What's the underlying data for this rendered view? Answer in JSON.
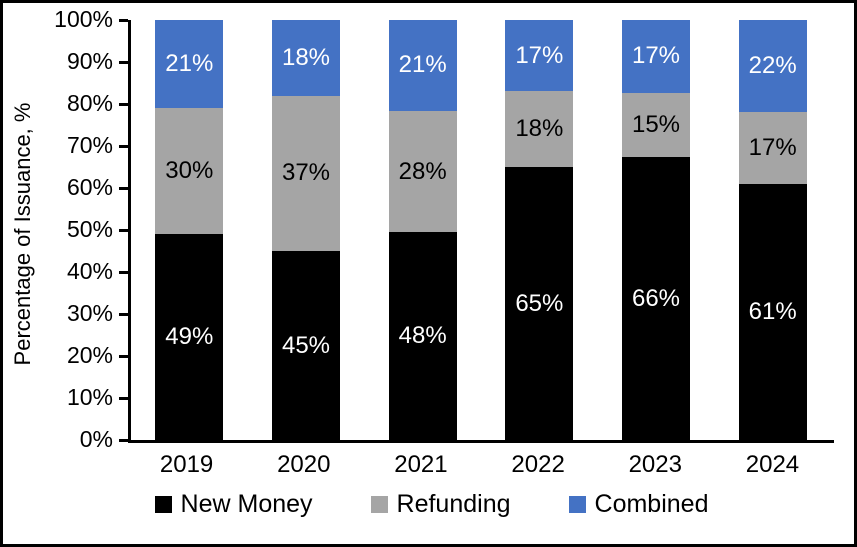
{
  "chart_data": {
    "type": "bar",
    "stacked": true,
    "title": "",
    "ylabel": "Percentage of Issuance, %",
    "xlabel": "",
    "ylim": [
      0,
      100
    ],
    "grid": false,
    "legend_position": "bottom",
    "categories": [
      "2019",
      "2020",
      "2021",
      "2022",
      "2023",
      "2024"
    ],
    "series": [
      {
        "name": "New Money",
        "color": "#000000",
        "label_color": "#ffffff",
        "values": [
          49,
          45,
          48,
          65,
          66,
          61
        ],
        "labels": [
          "49%",
          "45%",
          "48%",
          "65%",
          "66%",
          "61%"
        ]
      },
      {
        "name": "Refunding",
        "color": "#A5A5A5",
        "label_color": "#000000",
        "values": [
          30,
          37,
          28,
          18,
          15,
          17
        ],
        "labels": [
          "30%",
          "37%",
          "28%",
          "18%",
          "15%",
          "17%"
        ]
      },
      {
        "name": "Combined",
        "color": "#4472C4",
        "label_color": "#ffffff",
        "values": [
          21,
          18,
          21,
          17,
          17,
          22
        ],
        "labels": [
          "21%",
          "18%",
          "21%",
          "17%",
          "17%",
          "22%"
        ]
      }
    ],
    "y_ticks": [
      "0%",
      "10%",
      "20%",
      "30%",
      "40%",
      "50%",
      "60%",
      "70%",
      "80%",
      "90%",
      "100%"
    ]
  },
  "colors": {
    "axis": "#000000",
    "background": "#ffffff",
    "new_money": "#000000",
    "refunding": "#A5A5A5",
    "combined": "#4472C4"
  }
}
